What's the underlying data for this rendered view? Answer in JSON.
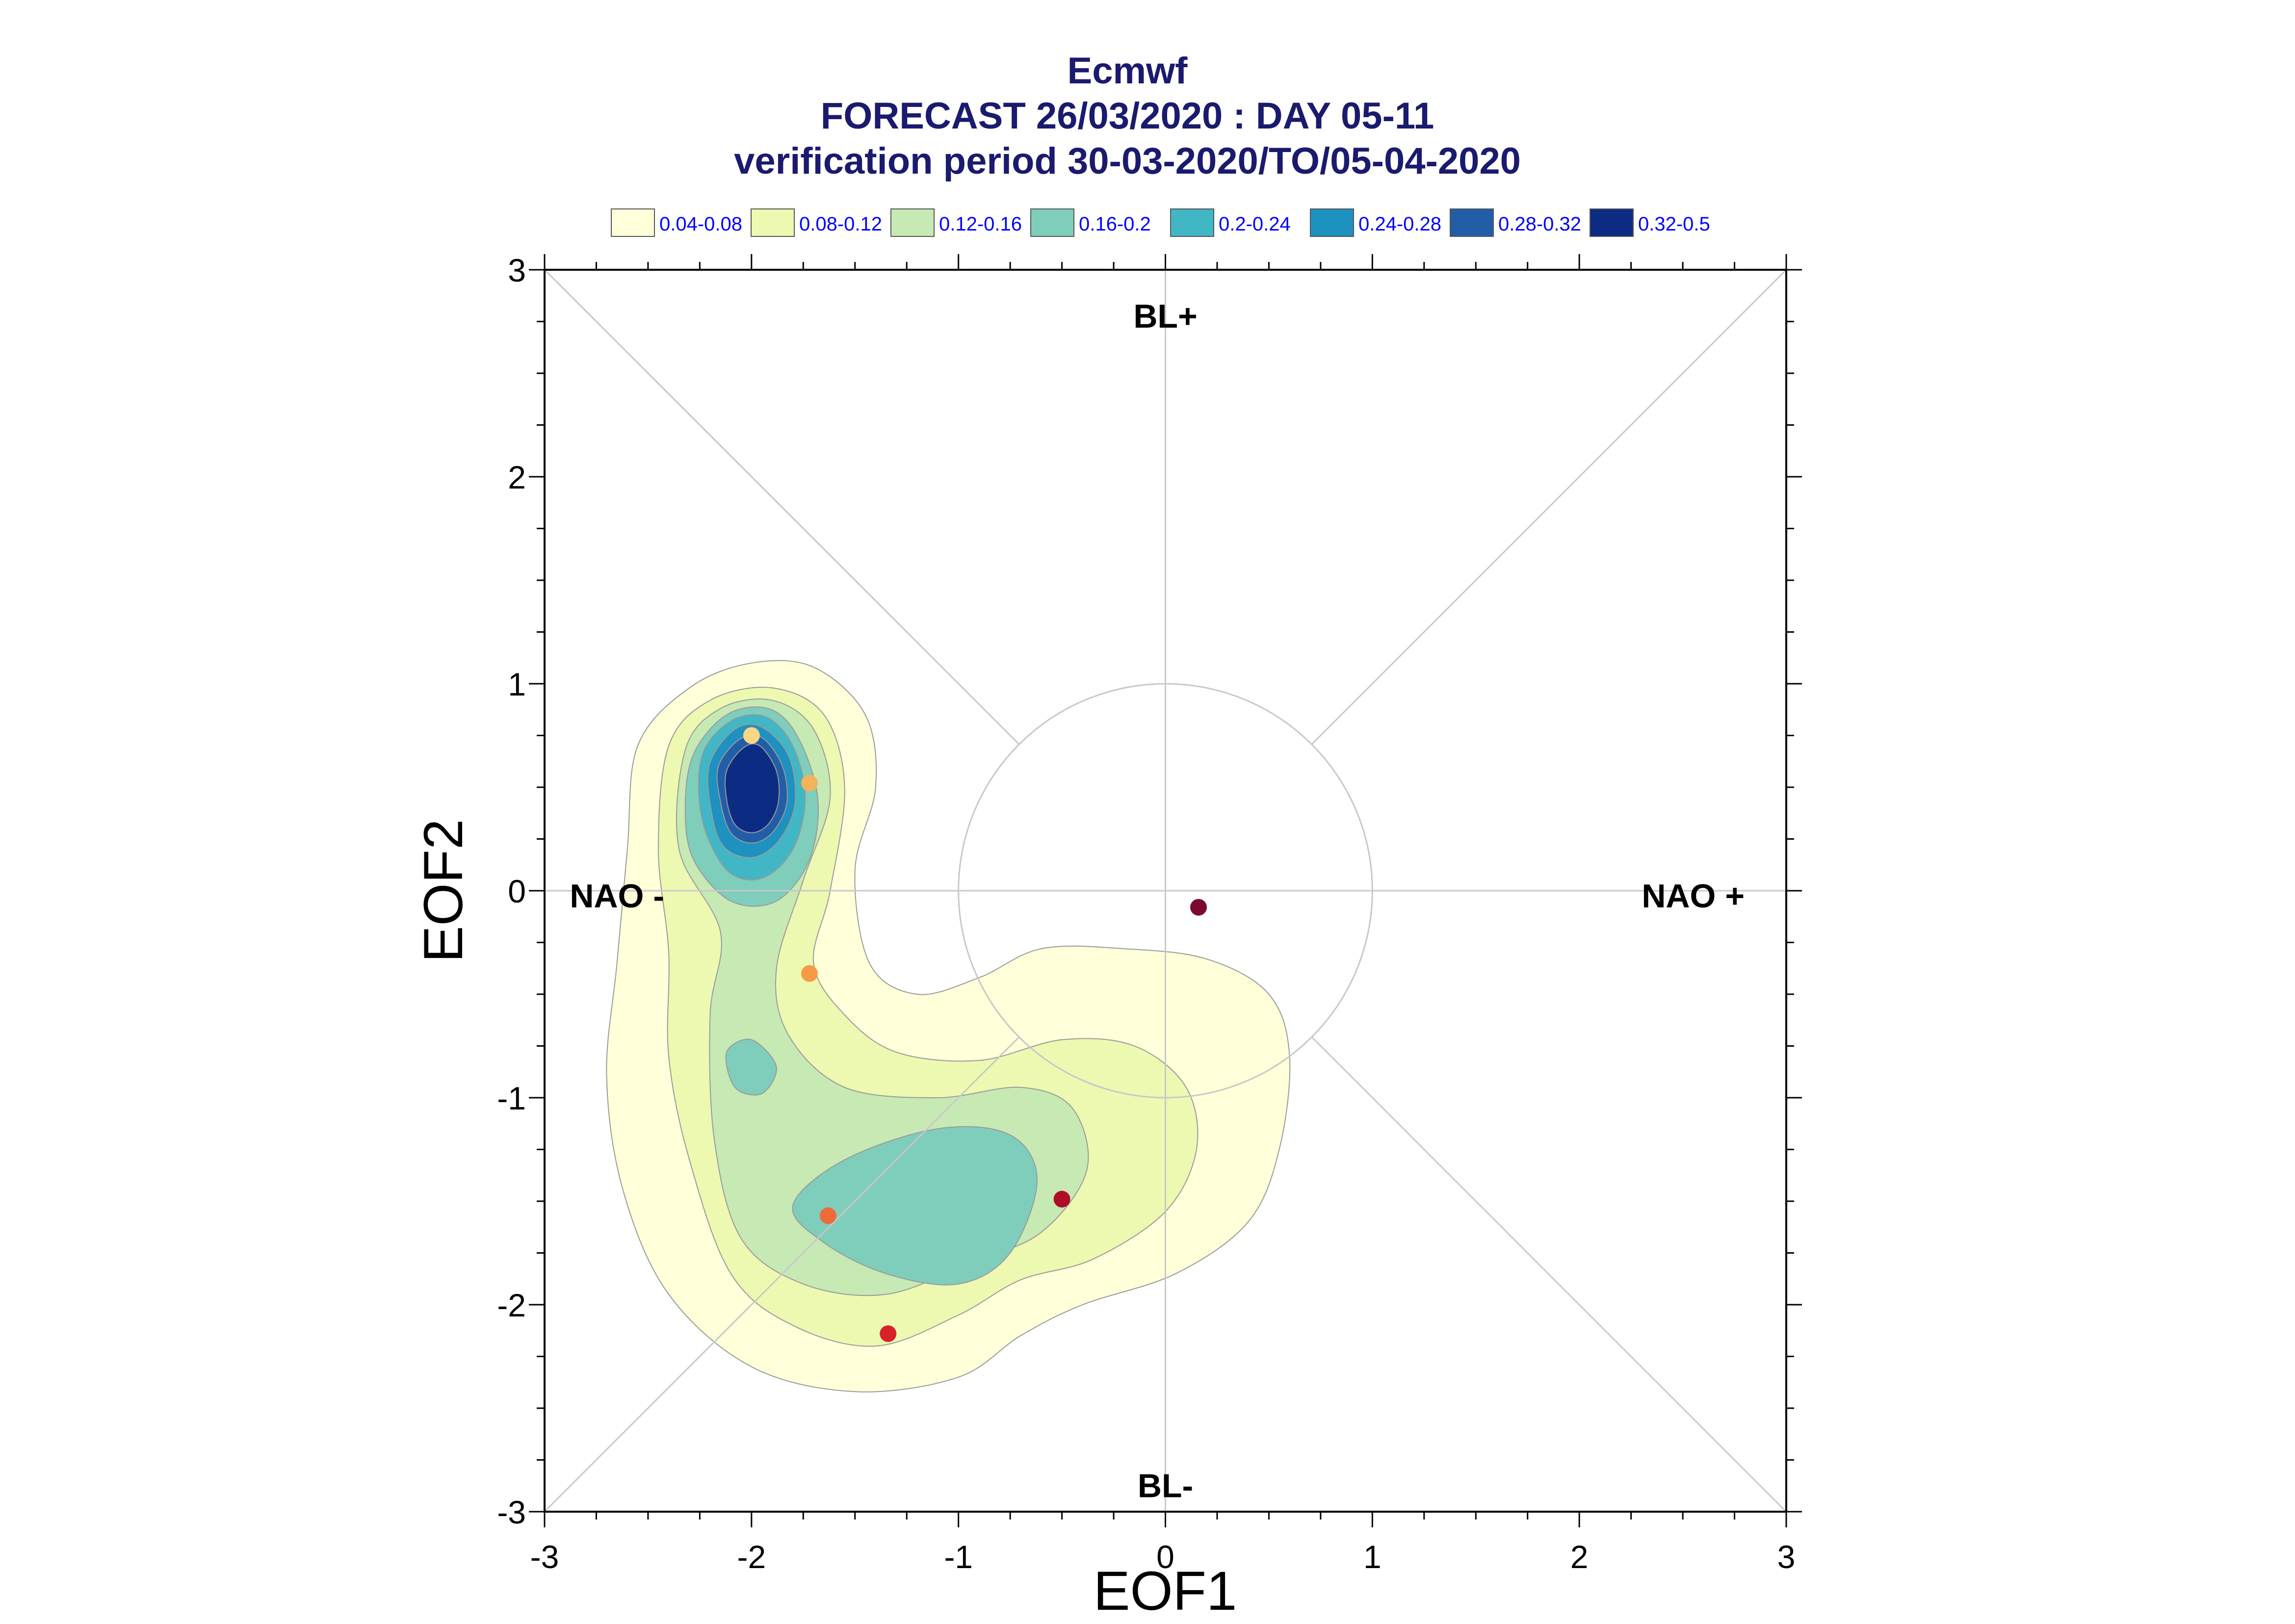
{
  "header": {
    "title": "Ecmwf",
    "line2": "FORECAST 26/03/2020 : DAY 05-11",
    "line3": "verification period 30-03-2020/TO/05-04-2020"
  },
  "colors": {
    "title": "#1a1a6e",
    "legend_text": "#0000ff",
    "axis": "#000000",
    "guide": "#c8c8c8",
    "contour_line": "#9a9a9a"
  },
  "chart_data": {
    "type": "contour",
    "xlabel": "EOF1",
    "ylabel": "EOF2",
    "xlim": [
      -3,
      3
    ],
    "ylim": [
      -3,
      3
    ],
    "xticks": [
      "-3",
      "-2",
      "-1",
      "0",
      "1",
      "2",
      "3"
    ],
    "yticks": [
      "-3",
      "-2",
      "-1",
      "0",
      "1",
      "2",
      "3"
    ],
    "regime_labels": [
      {
        "name": "bl-plus-label",
        "text": "BL+",
        "x": 0,
        "y": 2.72
      },
      {
        "name": "bl-minus-label",
        "text": "BL-",
        "x": 0,
        "y": -2.93
      },
      {
        "name": "nao-minus-label",
        "text": "NAO -",
        "x": -2.65,
        "y": -0.08
      },
      {
        "name": "nao-plus-label",
        "text": "NAO +",
        "x": 2.55,
        "y": -0.08
      }
    ],
    "legend": [
      {
        "label": "0.04-0.08",
        "color": "#ffffd9"
      },
      {
        "label": "0.08-0.12",
        "color": "#edf8b1"
      },
      {
        "label": "0.12-0.16",
        "color": "#c7e9b4"
      },
      {
        "label": "0.16-0.2",
        "color": "#7fcdbb"
      },
      {
        "label": "0.2-0.24",
        "color": "#41b6c4"
      },
      {
        "label": "0.24-0.28",
        "color": "#1d91c0"
      },
      {
        "label": "0.28-0.32",
        "color": "#225ea8"
      },
      {
        "label": "0.32-0.5",
        "color": "#0c2c84"
      }
    ],
    "contours": [
      {
        "level": "0.04-0.08",
        "color": "#ffffd9",
        "paths": [
          [
            [
              -2.55,
              0.7
            ],
            [
              -2.3,
              0.98
            ],
            [
              -2.0,
              1.1
            ],
            [
              -1.7,
              1.08
            ],
            [
              -1.45,
              0.85
            ],
            [
              -1.4,
              0.5
            ],
            [
              -1.5,
              0.1
            ],
            [
              -1.43,
              -0.35
            ],
            [
              -1.2,
              -0.5
            ],
            [
              -0.9,
              -0.42
            ],
            [
              -0.6,
              -0.28
            ],
            [
              -0.2,
              -0.28
            ],
            [
              0.2,
              -0.33
            ],
            [
              0.5,
              -0.5
            ],
            [
              0.6,
              -0.8
            ],
            [
              0.55,
              -1.25
            ],
            [
              0.4,
              -1.6
            ],
            [
              0.05,
              -1.85
            ],
            [
              -0.4,
              -2.0
            ],
            [
              -0.7,
              -2.15
            ],
            [
              -1.0,
              -2.35
            ],
            [
              -1.5,
              -2.42
            ],
            [
              -2.0,
              -2.3
            ],
            [
              -2.4,
              -1.95
            ],
            [
              -2.62,
              -1.45
            ],
            [
              -2.7,
              -0.9
            ],
            [
              -2.65,
              -0.35
            ],
            [
              -2.6,
              0.2
            ]
          ]
        ]
      },
      {
        "level": "0.08-0.12",
        "color": "#edf8b1",
        "paths": [
          [
            [
              -2.4,
              0.7
            ],
            [
              -2.2,
              0.92
            ],
            [
              -1.9,
              0.98
            ],
            [
              -1.65,
              0.85
            ],
            [
              -1.55,
              0.5
            ],
            [
              -1.62,
              0.0
            ],
            [
              -1.7,
              -0.35
            ],
            [
              -1.55,
              -0.6
            ],
            [
              -1.3,
              -0.78
            ],
            [
              -0.9,
              -0.82
            ],
            [
              -0.5,
              -0.72
            ],
            [
              -0.15,
              -0.75
            ],
            [
              0.1,
              -0.95
            ],
            [
              0.15,
              -1.25
            ],
            [
              0.0,
              -1.55
            ],
            [
              -0.35,
              -1.78
            ],
            [
              -0.7,
              -1.88
            ],
            [
              -1.0,
              -2.05
            ],
            [
              -1.4,
              -2.2
            ],
            [
              -1.8,
              -2.1
            ],
            [
              -2.1,
              -1.85
            ],
            [
              -2.3,
              -1.3
            ],
            [
              -2.4,
              -0.8
            ],
            [
              -2.4,
              -0.3
            ],
            [
              -2.45,
              0.2
            ]
          ]
        ]
      },
      {
        "level": "0.12-0.16",
        "color": "#c7e9b4",
        "paths": [
          [
            [
              -2.32,
              0.68
            ],
            [
              -2.15,
              0.88
            ],
            [
              -1.9,
              0.92
            ],
            [
              -1.7,
              0.78
            ],
            [
              -1.62,
              0.45
            ],
            [
              -1.75,
              0.05
            ],
            [
              -1.88,
              -0.38
            ],
            [
              -1.82,
              -0.7
            ],
            [
              -1.55,
              -0.95
            ],
            [
              -1.1,
              -1.0
            ],
            [
              -0.7,
              -0.95
            ],
            [
              -0.45,
              -1.05
            ],
            [
              -0.38,
              -1.35
            ],
            [
              -0.6,
              -1.65
            ],
            [
              -0.95,
              -1.8
            ],
            [
              -1.35,
              -1.95
            ],
            [
              -1.75,
              -1.9
            ],
            [
              -2.05,
              -1.68
            ],
            [
              -2.18,
              -1.2
            ],
            [
              -2.2,
              -0.6
            ],
            [
              -2.15,
              -0.2
            ],
            [
              -2.35,
              0.2
            ]
          ]
        ]
      },
      {
        "level": "0.16-0.2",
        "color": "#7fcdbb",
        "paths": [
          [
            [
              -2.28,
              0.66
            ],
            [
              -2.12,
              0.85
            ],
            [
              -1.92,
              0.88
            ],
            [
              -1.78,
              0.75
            ],
            [
              -1.68,
              0.45
            ],
            [
              -1.72,
              0.15
            ],
            [
              -1.88,
              -0.05
            ],
            [
              -2.1,
              -0.05
            ],
            [
              -2.28,
              0.15
            ],
            [
              -2.32,
              0.4
            ]
          ],
          [
            [
              -2.12,
              -0.78
            ],
            [
              -2.0,
              -0.72
            ],
            [
              -1.88,
              -0.85
            ],
            [
              -1.95,
              -0.98
            ],
            [
              -2.08,
              -0.95
            ]
          ],
          [
            [
              -1.8,
              -1.52
            ],
            [
              -1.55,
              -1.3
            ],
            [
              -1.1,
              -1.15
            ],
            [
              -0.75,
              -1.18
            ],
            [
              -0.62,
              -1.4
            ],
            [
              -0.75,
              -1.75
            ],
            [
              -1.0,
              -1.9
            ],
            [
              -1.35,
              -1.85
            ],
            [
              -1.65,
              -1.7
            ]
          ]
        ]
      },
      {
        "level": "0.2-0.24",
        "color": "#41b6c4",
        "paths": [
          [
            [
              -2.24,
              0.65
            ],
            [
              -2.1,
              0.82
            ],
            [
              -1.93,
              0.84
            ],
            [
              -1.8,
              0.7
            ],
            [
              -1.74,
              0.45
            ],
            [
              -1.8,
              0.2
            ],
            [
              -1.95,
              0.06
            ],
            [
              -2.12,
              0.1
            ],
            [
              -2.24,
              0.35
            ]
          ]
        ]
      },
      {
        "level": "0.24-0.28",
        "color": "#1d91c0",
        "paths": [
          [
            [
              -2.2,
              0.62
            ],
            [
              -2.08,
              0.78
            ],
            [
              -1.95,
              0.79
            ],
            [
              -1.82,
              0.65
            ],
            [
              -1.79,
              0.42
            ],
            [
              -1.87,
              0.24
            ],
            [
              -2.0,
              0.16
            ],
            [
              -2.14,
              0.22
            ],
            [
              -2.2,
              0.42
            ]
          ]
        ]
      },
      {
        "level": "0.28-0.32",
        "color": "#225ea8",
        "paths": [
          [
            [
              -2.16,
              0.6
            ],
            [
              -2.06,
              0.73
            ],
            [
              -1.95,
              0.74
            ],
            [
              -1.85,
              0.6
            ],
            [
              -1.83,
              0.42
            ],
            [
              -1.9,
              0.28
            ],
            [
              -2.0,
              0.23
            ],
            [
              -2.1,
              0.28
            ],
            [
              -2.15,
              0.43
            ]
          ]
        ]
      },
      {
        "level": "0.32-0.5",
        "color": "#0c2c84",
        "paths": [
          [
            [
              -2.12,
              0.58
            ],
            [
              -2.04,
              0.69
            ],
            [
              -1.96,
              0.7
            ],
            [
              -1.88,
              0.58
            ],
            [
              -1.87,
              0.43
            ],
            [
              -1.92,
              0.32
            ],
            [
              -2.0,
              0.28
            ],
            [
              -2.08,
              0.32
            ],
            [
              -2.12,
              0.44
            ]
          ]
        ]
      }
    ],
    "points": [
      {
        "x": -2.0,
        "y": 0.75,
        "color": "#f9d683"
      },
      {
        "x": -1.72,
        "y": 0.52,
        "color": "#f2b35b"
      },
      {
        "x": -1.72,
        "y": -0.4,
        "color": "#f79a45"
      },
      {
        "x": -1.63,
        "y": -1.57,
        "color": "#ef6a3b"
      },
      {
        "x": -1.34,
        "y": -2.14,
        "color": "#d7222b"
      },
      {
        "x": -0.5,
        "y": -1.49,
        "color": "#b00d26"
      },
      {
        "x": 0.16,
        "y": -0.08,
        "color": "#7a0a30"
      }
    ]
  }
}
